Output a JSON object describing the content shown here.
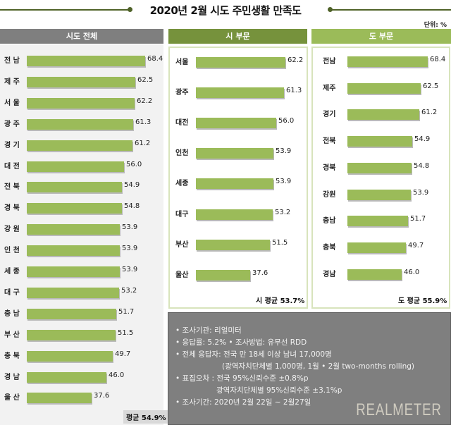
{
  "title": "2020년 2월 시도 주민생활 만족도",
  "unit": "단위: %",
  "colors": {
    "bar": "#9bbb59",
    "header_all": "#7f7f7f",
    "header_city": "#76923c",
    "header_province": "#9bbb59"
  },
  "chart_data": [
    {
      "type": "bar",
      "orientation": "horizontal",
      "title": "시도 전체",
      "categories": [
        "전남",
        "제주",
        "서울",
        "광주",
        "경기",
        "대전",
        "전북",
        "경북",
        "강원",
        "인천",
        "세종",
        "대구",
        "충남",
        "부산",
        "충북",
        "경남",
        "울산"
      ],
      "labels": [
        "전 남",
        "제 주",
        "서 울",
        "광 주",
        "경 기",
        "대 전",
        "전 북",
        "경 북",
        "강 원",
        "인 천",
        "세 종",
        "대 구",
        "충 남",
        "부 산",
        "충 북",
        "경 남",
        "울 산"
      ],
      "values": [
        68.4,
        62.5,
        62.2,
        61.3,
        61.2,
        56.0,
        54.9,
        54.8,
        53.9,
        53.9,
        53.9,
        53.2,
        51.7,
        51.5,
        49.7,
        46.0,
        37.6
      ],
      "value_labels": [
        "68.4",
        "62.5",
        "62.2",
        "61.3",
        "61.2",
        "56.0",
        "54.9",
        "54.8",
        "53.9",
        "53.9",
        "53.9",
        "53.2",
        "51.7",
        "51.5",
        "49.7",
        "46.0",
        "37.6"
      ],
      "average_label": "평균 54.9%",
      "unit": "%"
    },
    {
      "type": "bar",
      "orientation": "horizontal",
      "title": "시 부문",
      "categories": [
        "서울",
        "광주",
        "대전",
        "인천",
        "세종",
        "대구",
        "부산",
        "울산"
      ],
      "labels": [
        "서울",
        "광주",
        "대전",
        "인천",
        "세종",
        "대구",
        "부산",
        "울산"
      ],
      "values": [
        62.2,
        61.3,
        56.0,
        53.9,
        53.9,
        53.2,
        51.5,
        37.6
      ],
      "value_labels": [
        "62.2",
        "61.3",
        "56.0",
        "53.9",
        "53.9",
        "53.2",
        "51.5",
        "37.6"
      ],
      "average_label": "시 평균 53.7%",
      "unit": "%"
    },
    {
      "type": "bar",
      "orientation": "horizontal",
      "title": "도 부문",
      "categories": [
        "전남",
        "제주",
        "경기",
        "전북",
        "경북",
        "강원",
        "충남",
        "충북",
        "경남"
      ],
      "labels": [
        "전남",
        "제주",
        "경기",
        "전북",
        "경북",
        "강원",
        "충남",
        "충북",
        "경남"
      ],
      "values": [
        68.4,
        62.5,
        61.2,
        54.9,
        54.8,
        53.9,
        51.7,
        49.7,
        46.0
      ],
      "value_labels": [
        "68.4",
        "62.5",
        "61.2",
        "54.9",
        "54.8",
        "53.9",
        "51.7",
        "49.7",
        "46.0"
      ],
      "average_label": "도 평균 55.9%",
      "unit": "%"
    }
  ],
  "info": {
    "lines": [
      "• 조사기관: 리얼미터",
      "• 응답률: 5.2% • 조사방법: 유무선 RDD",
      "• 전체 응답자: 전국 만 18세 이상 남녀 17,000명",
      "(광역자치단체별 1,000명, 1월 • 2월 two-months rolling)",
      "• 표집오차 : 전국 95%신뢰수준 ±0.8%p",
      "광역자치단체별 95%신뢰수준 ±3.1%p",
      "• 조사기간: 2020년 2월 22일 ~ 2월27일"
    ],
    "brand": "REALMETER"
  }
}
